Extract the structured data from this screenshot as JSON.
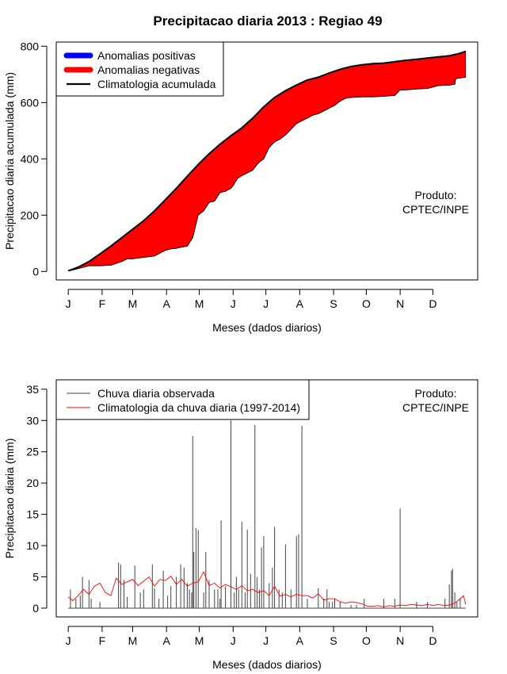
{
  "title": "Precipitacao diaria 2013 : Regiao 49",
  "chart_data": [
    {
      "type": "area",
      "ylabel": "Precipitacao diaria acumulada (mm)",
      "xlabel": "Meses (dados diarios)",
      "x_tick_labels": [
        "J",
        "F",
        "M",
        "A",
        "M",
        "J",
        "J",
        "A",
        "S",
        "O",
        "N",
        "D"
      ],
      "x_tick_days": [
        1,
        32,
        60,
        91,
        121,
        152,
        182,
        213,
        244,
        274,
        305,
        335
      ],
      "xlim": [
        -10,
        376
      ],
      "ylim": [
        -30,
        815
      ],
      "y_ticks": [
        0,
        200,
        400,
        600,
        800
      ],
      "y_tick_labels": [
        "0",
        "200",
        "400",
        "600",
        "800"
      ],
      "legend": {
        "position": "top-left",
        "entries": [
          "Anomalias positivas",
          "Anomalias negativas",
          "Climatologia acumulada"
        ],
        "colors": [
          "#0000ff",
          "#ff0000",
          "#000000"
        ]
      },
      "annotation": [
        "Produto:",
        "CPTEC/INPE"
      ],
      "climatology": {
        "name": "Climatologia acumulada",
        "days": [
          1,
          10,
          20,
          30,
          40,
          50,
          60,
          70,
          80,
          90,
          100,
          110,
          120,
          130,
          140,
          150,
          160,
          170,
          180,
          190,
          200,
          210,
          220,
          230,
          240,
          250,
          260,
          270,
          280,
          290,
          300,
          310,
          320,
          330,
          340,
          350,
          360,
          365
        ],
        "values": [
          2,
          15,
          35,
          62,
          90,
          120,
          150,
          180,
          215,
          255,
          295,
          338,
          380,
          418,
          452,
          482,
          510,
          545,
          585,
          618,
          642,
          662,
          680,
          690,
          705,
          718,
          728,
          734,
          738,
          740,
          745,
          750,
          754,
          758,
          762,
          766,
          775,
          782
        ]
      },
      "observed": {
        "name": "Precipitacao observada acumulada",
        "days": [
          1,
          5,
          10,
          15,
          20,
          25,
          30,
          40,
          50,
          55,
          60,
          70,
          80,
          85,
          90,
          95,
          100,
          103,
          110,
          115,
          120,
          125,
          130,
          135,
          140,
          145,
          150,
          152,
          156,
          160,
          165,
          170,
          175,
          180,
          185,
          190,
          195,
          200,
          205,
          210,
          215,
          220,
          225,
          230,
          235,
          240,
          245,
          250,
          255,
          260,
          270,
          280,
          290,
          300,
          305,
          310,
          320,
          330,
          340,
          350,
          355,
          356,
          365
        ],
        "values": [
          2,
          5,
          10,
          15,
          20,
          20,
          20,
          22,
          35,
          45,
          45,
          50,
          55,
          65,
          75,
          80,
          82,
          85,
          90,
          120,
          200,
          215,
          245,
          250,
          280,
          285,
          295,
          305,
          330,
          340,
          350,
          360,
          385,
          400,
          440,
          460,
          470,
          485,
          505,
          525,
          535,
          545,
          555,
          560,
          570,
          580,
          590,
          605,
          615,
          618,
          620,
          620,
          622,
          625,
          645,
          645,
          648,
          650,
          660,
          662,
          665,
          685,
          690
        ]
      }
    },
    {
      "type": "bar",
      "ylabel": "Precipitacao diaria (mm)",
      "xlabel": "Meses (dados diarios)",
      "x_tick_labels": [
        "J",
        "F",
        "M",
        "A",
        "M",
        "J",
        "J",
        "A",
        "S",
        "O",
        "N",
        "D"
      ],
      "x_tick_days": [
        1,
        32,
        60,
        91,
        121,
        152,
        182,
        213,
        244,
        274,
        305,
        335
      ],
      "xlim": [
        -10,
        376
      ],
      "ylim": [
        -1.4,
        36.5
      ],
      "y_ticks": [
        0,
        5,
        10,
        15,
        20,
        25,
        30,
        35
      ],
      "y_tick_labels": [
        "0",
        "5",
        "10",
        "15",
        "20",
        "25",
        "30",
        "35"
      ],
      "legend": {
        "position": "top-left",
        "entries": [
          "Chuva diaria observada",
          "Climatologia da chuva diaria (1997-2014)"
        ],
        "colors": [
          "#444444",
          "#ff0000"
        ]
      },
      "annotation": [
        "Produto:",
        "CPTEC/INPE"
      ],
      "observed_daily": {
        "name": "Chuva diaria observada",
        "days": [
          3,
          8,
          12,
          14,
          20,
          22,
          30,
          47,
          49,
          52,
          55,
          62,
          67,
          70,
          78,
          80,
          84,
          88,
          92,
          95,
          100,
          104,
          107,
          110,
          112,
          114,
          115,
          116,
          118,
          120,
          125,
          127,
          130,
          135,
          138,
          140,
          141,
          145,
          150,
          153,
          155,
          157,
          160,
          163,
          165,
          168,
          172,
          174,
          176,
          178,
          180,
          185,
          188,
          190,
          194,
          197,
          200,
          205,
          210,
          212,
          215,
          220,
          230,
          235,
          238,
          240,
          243,
          245,
          250,
          260,
          265,
          272,
          290,
          300,
          305,
          320,
          330,
          346,
          350,
          352,
          353,
          355,
          357,
          360
        ],
        "values": [
          3,
          1.5,
          2,
          5,
          4.5,
          1.5,
          1,
          7.3,
          7,
          4.5,
          1.8,
          6.8,
          2.5,
          3,
          7,
          3.2,
          1.5,
          6,
          2,
          3.5,
          5,
          7,
          6.5,
          4,
          3,
          2.5,
          27.5,
          9,
          12.8,
          12.5,
          2.5,
          9,
          4.5,
          3,
          3,
          1.5,
          14,
          3.5,
          30,
          2.5,
          5,
          3,
          13.8,
          2.5,
          12.5,
          5.5,
          29.3,
          5,
          3,
          9.7,
          11.5,
          4,
          6.5,
          13,
          3,
          2.5,
          10.2,
          3,
          11.5,
          11.8,
          29.1,
          1.5,
          3.2,
          1.5,
          3,
          1,
          1,
          1.5,
          1,
          0.5,
          0.5,
          1.5,
          1.5,
          1.5,
          15.9,
          1,
          1,
          1.5,
          3.8,
          6,
          6.3,
          2.5,
          1,
          1.5
        ]
      },
      "climatology_daily": {
        "name": "Climatologia da chuva diaria (1997-2014)",
        "days": [
          1,
          5,
          10,
          15,
          20,
          25,
          30,
          35,
          40,
          45,
          50,
          55,
          60,
          65,
          70,
          75,
          80,
          85,
          90,
          95,
          100,
          105,
          110,
          115,
          120,
          125,
          130,
          135,
          140,
          145,
          150,
          155,
          160,
          165,
          170,
          175,
          180,
          185,
          190,
          195,
          200,
          205,
          210,
          215,
          220,
          225,
          230,
          235,
          240,
          245,
          250,
          255,
          260,
          265,
          270,
          275,
          280,
          285,
          290,
          295,
          300,
          305,
          310,
          315,
          320,
          325,
          330,
          335,
          340,
          345,
          350,
          355,
          360,
          363,
          365
        ],
        "values": [
          1.8,
          1.2,
          2.0,
          3.0,
          2.2,
          3.5,
          4.0,
          2.5,
          2.0,
          4.8,
          3.8,
          4.2,
          4.6,
          3.6,
          4.3,
          5.0,
          3.5,
          4.6,
          4.4,
          5.1,
          3.8,
          4.6,
          3.5,
          4.0,
          4.2,
          5.8,
          3.6,
          4.0,
          3.2,
          3.8,
          3.4,
          3.0,
          3.6,
          2.8,
          3.0,
          2.5,
          2.8,
          2.0,
          3.5,
          1.9,
          2.2,
          1.8,
          2.2,
          2.0,
          2.0,
          1.6,
          2.3,
          1.3,
          1.5,
          1.5,
          1.0,
          0.8,
          1.0,
          0.9,
          0.7,
          0.3,
          0.3,
          0.4,
          0.2,
          0.4,
          0.3,
          0.5,
          0.4,
          0.6,
          0.5,
          0.4,
          0.6,
          0.4,
          0.6,
          0.4,
          0.5,
          0.8,
          1.5,
          2.0,
          0.6
        ]
      }
    }
  ]
}
